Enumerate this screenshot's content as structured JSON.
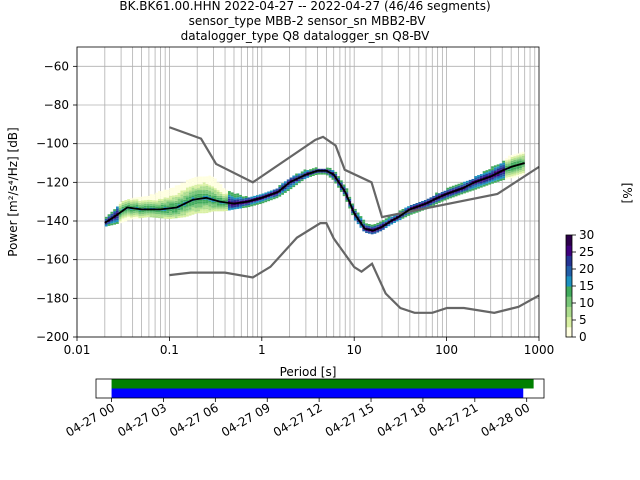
{
  "header": {
    "line1": "BK.BK61.00.HHN   2022-04-27 -- 2022-04-27  (46/46 segments)",
    "line2": "sensor_type MBB-2 sensor_sn MBB2-BV",
    "line3": "datalogger_type Q8 datalogger_sn Q8-BV"
  },
  "chart_data": [
    {
      "type": "heatmap",
      "subtype": "probabilistic-power-spectral-density",
      "xlabel": "Period [s]",
      "ylabel": "Power [m²/s⁴/Hz] [dB]",
      "x_scale": "log",
      "xlim": [
        0.01,
        1000
      ],
      "ylim": [
        -200,
        -50
      ],
      "x_ticks": [
        0.01,
        0.1,
        1,
        10,
        100,
        1000
      ],
      "x_tick_labels": [
        "0.01",
        "0.1",
        "1",
        "10",
        "100",
        "1000"
      ],
      "y_ticks": [
        -200,
        -180,
        -160,
        -140,
        -120,
        -100,
        -80,
        -60
      ],
      "y_tick_labels": [
        "−200",
        "−180",
        "−160",
        "−140",
        "−120",
        "−100",
        "−80",
        "−60"
      ],
      "grid": true,
      "colorbar": {
        "label": "[%]",
        "range": [
          0,
          30
        ],
        "ticks": [
          0,
          5,
          10,
          15,
          20,
          25,
          30
        ],
        "tick_labels": [
          "0",
          "5",
          "10",
          "15",
          "20",
          "25",
          "30"
        ],
        "colors": [
          "#ffffe0",
          "#d9f0a3",
          "#addd8e",
          "#78c679",
          "#41ab5d",
          "#1d91c0",
          "#225ea8",
          "#253494",
          "#3f007d",
          "#2d004b"
        ]
      },
      "series": [
        {
          "name": "NHNM",
          "color": "#666666",
          "x": [
            0.1,
            0.22,
            0.32,
            0.8,
            3.8,
            4.6,
            6.3,
            7.9,
            15.4,
            20,
            354.8,
            1000
          ],
          "y": [
            -91.5,
            -97.4,
            -110.5,
            -120,
            -98,
            -96.5,
            -101,
            -113.5,
            -120,
            -138,
            -126,
            -112
          ]
        },
        {
          "name": "NLNM",
          "color": "#666666",
          "x": [
            0.1,
            0.17,
            0.4,
            0.8,
            1.24,
            2.4,
            4.3,
            5,
            6,
            10,
            12,
            15.6,
            21.9,
            31.6,
            45,
            70,
            101,
            154,
            328,
            600,
            1000
          ],
          "y": [
            -168,
            -166.7,
            -166.7,
            -169.2,
            -163.7,
            -148.6,
            -141.1,
            -141.1,
            -149,
            -163.8,
            -166.2,
            -162.1,
            -177.5,
            -185,
            -187.5,
            -187.5,
            -185,
            -185,
            -187.5,
            -184.4,
            -178.5
          ]
        },
        {
          "name": "mode",
          "color": "#000000",
          "x": [
            0.02,
            0.025,
            0.035,
            0.05,
            0.08,
            0.12,
            0.18,
            0.25,
            0.35,
            0.5,
            0.7,
            1,
            1.5,
            2,
            3,
            4,
            5,
            6,
            8,
            10,
            13,
            16,
            20,
            25,
            30,
            40,
            60,
            80,
            100,
            150,
            200,
            300,
            400,
            500,
            700
          ],
          "y": [
            -141,
            -138,
            -133,
            -134,
            -134,
            -133,
            -129,
            -128,
            -130,
            -131,
            -130,
            -128,
            -125,
            -120,
            -116,
            -114,
            -114,
            -116,
            -125,
            -136,
            -144,
            -145,
            -143,
            -140,
            -138,
            -134,
            -131,
            -128,
            -126,
            -123,
            -120,
            -117,
            -114,
            -112,
            -110
          ]
        },
        {
          "name": "psd-upper-envelope",
          "x": [
            0.02,
            0.025,
            0.03,
            0.04,
            0.06,
            0.1,
            0.15,
            0.2,
            0.25,
            0.3,
            0.4,
            0.5,
            0.7,
            1,
            1.5,
            2,
            3,
            4,
            5,
            6,
            8,
            10,
            13,
            16,
            20,
            25,
            30,
            40,
            60,
            80,
            100,
            150,
            200,
            300,
            400,
            500,
            700
          ],
          "y": [
            -139,
            -135,
            -130,
            -128,
            -127,
            -124,
            -120,
            -117,
            -117,
            -118,
            -124,
            -126,
            -128,
            -127,
            -123,
            -118,
            -114,
            -113,
            -113,
            -114,
            -122,
            -133,
            -141,
            -142,
            -140,
            -138,
            -136,
            -132,
            -129,
            -126,
            -124,
            -120,
            -118,
            -113,
            -110,
            -106,
            -105
          ]
        },
        {
          "name": "psd-lower-envelope",
          "x": [
            0.02,
            0.025,
            0.03,
            0.04,
            0.06,
            0.1,
            0.15,
            0.2,
            0.25,
            0.3,
            0.4,
            0.5,
            0.7,
            1,
            1.5,
            2,
            3,
            4,
            5,
            6,
            8,
            10,
            13,
            16,
            20,
            25,
            30,
            40,
            60,
            80,
            100,
            150,
            200,
            300,
            400,
            500,
            700
          ],
          "y": [
            -143,
            -142,
            -141,
            -139,
            -138,
            -139,
            -138,
            -136,
            -136,
            -135,
            -135,
            -134,
            -133,
            -131,
            -128,
            -124,
            -118,
            -116,
            -116,
            -119,
            -128,
            -139,
            -146,
            -147,
            -145,
            -142,
            -140,
            -137,
            -134,
            -131,
            -129,
            -126,
            -124,
            -121,
            -119,
            -118,
            -116
          ]
        }
      ]
    },
    {
      "type": "timeline",
      "x_tick_labels": [
        "04-27 00",
        "04-27 03",
        "04-27 06",
        "04-27 09",
        "04-27 12",
        "04-27 15",
        "04-27 18",
        "04-27 21",
        "04-28 00"
      ],
      "xlim_hours": [
        -0.9,
        25.0
      ],
      "series": [
        {
          "name": "data",
          "color": "#008000",
          "start_hour": 0,
          "end_hour": 24.4
        },
        {
          "name": "psd",
          "color": "#0000ff",
          "start_hour": 0,
          "end_hour": 23.8
        }
      ]
    }
  ]
}
